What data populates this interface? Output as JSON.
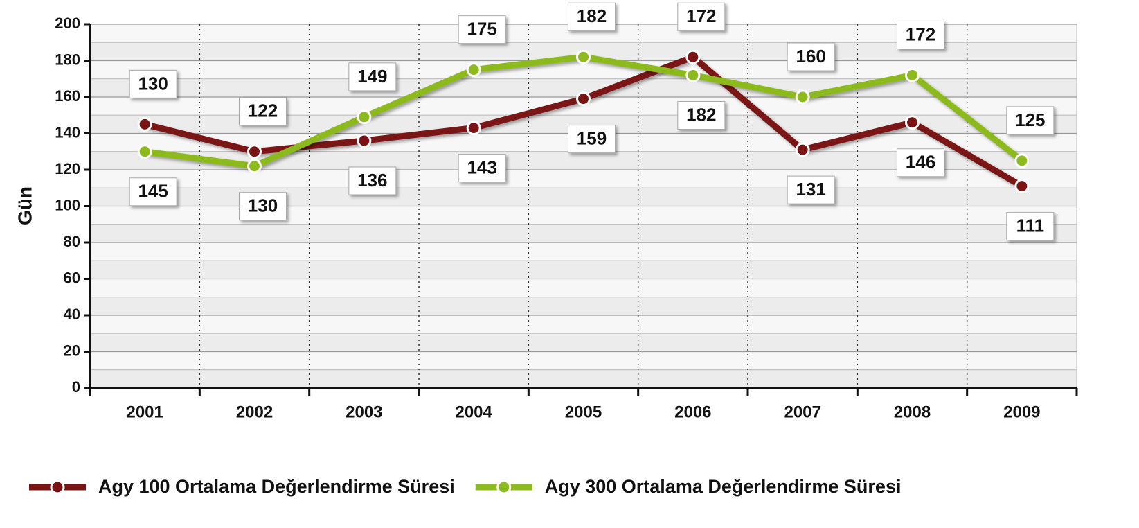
{
  "chart_data": {
    "type": "line",
    "categories": [
      "2001",
      "2002",
      "2003",
      "2004",
      "2005",
      "2006",
      "2007",
      "2008",
      "2009"
    ],
    "y_label": "Gün",
    "series": [
      {
        "name": "Agy 100 Ortalama Değerlendirme Süresi",
        "color": "#7a1414",
        "values": [
          145,
          130,
          136,
          143,
          159,
          182,
          131,
          146,
          111
        ]
      },
      {
        "name": "Agy 300 Ortalama Değerlendirme Süresi",
        "color": "#8cba1f",
        "values": [
          130,
          122,
          149,
          175,
          182,
          172,
          160,
          172,
          125
        ]
      }
    ],
    "ylim": [
      0,
      200
    ],
    "yticks": [
      0,
      20,
      40,
      60,
      80,
      100,
      120,
      140,
      160,
      180,
      200
    ],
    "grid": true,
    "legend": "bottom"
  }
}
